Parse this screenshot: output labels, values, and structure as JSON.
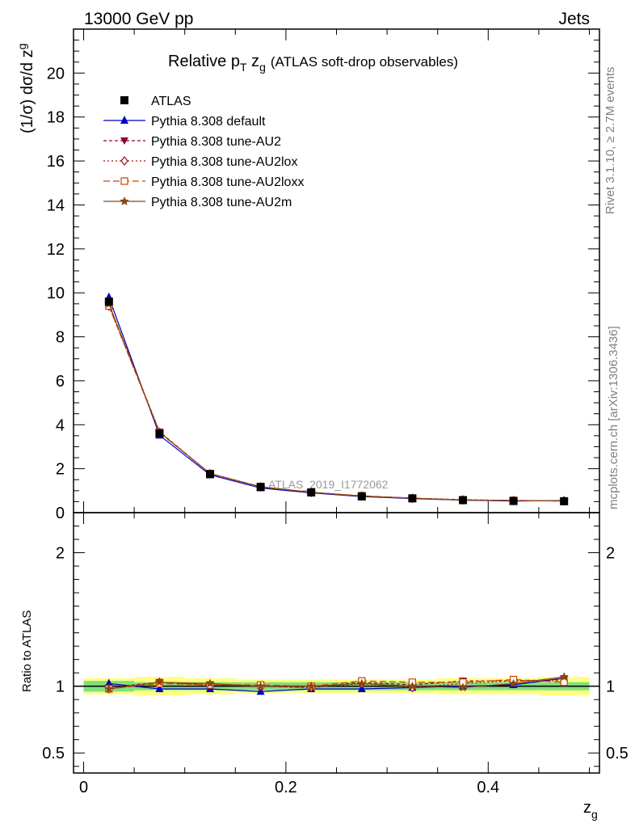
{
  "header": {
    "left_label": "13000 GeV pp",
    "right_label": "Jets"
  },
  "title": {
    "main": "Relative p",
    "main_sub": "T",
    "main_rest": " z",
    "main_rest_sub": "g",
    "paren": "(ATLAS soft-drop observables)"
  },
  "side": {
    "rivet": "Rivet 3.1.10, ≥ 2.7M events",
    "mcplots": "mcplots.cern.ch [arXiv:1306.3436]"
  },
  "watermark": "ATLAS_2019_I1772062",
  "axes": {
    "ylabel_top": "(1/σ) dσ/d z",
    "ylabel_top_sub": "g",
    "ylabel_bottom": "Ratio to ATLAS",
    "xlabel": "z",
    "xlabel_sub": "g"
  },
  "chart_data": {
    "type": "line",
    "x": [
      0.025,
      0.075,
      0.125,
      0.175,
      0.225,
      0.275,
      0.325,
      0.375,
      0.425,
      0.475
    ],
    "xlim": [
      -0.01,
      0.51
    ],
    "ylim_main": [
      0,
      22
    ],
    "ylim_ratio": [
      0.35,
      2.3
    ],
    "xticks": [
      "0",
      "0.2",
      "0.4"
    ],
    "yticks_main": [
      "0",
      "2",
      "4",
      "6",
      "8",
      "10",
      "12",
      "14",
      "16",
      "18",
      "20"
    ],
    "yticks_ratio": [
      "0.5",
      "1",
      "2"
    ],
    "colors": {
      "ATLAS": "#000000",
      "default": "#0000cc",
      "AU2": "#8b0033",
      "AU2lox": "#a01010",
      "AU2loxx": "#cc4400",
      "AU2m": "#8b4513",
      "band_inner": "#7fe07f",
      "band_outer": "#ffff80"
    },
    "series": [
      {
        "name": "ATLAS",
        "marker": "square",
        "values": [
          9.6,
          3.6,
          1.75,
          1.17,
          0.92,
          0.74,
          0.65,
          0.57,
          0.53,
          0.52
        ],
        "ratio": [
          1,
          1,
          1,
          1,
          1,
          1,
          1,
          1,
          1,
          1
        ]
      },
      {
        "name": "Pythia 8.308 default",
        "marker": "triangle-up",
        "values": [
          9.8,
          3.52,
          1.72,
          1.12,
          0.9,
          0.73,
          0.64,
          0.57,
          0.53,
          0.55
        ],
        "ratio": [
          1.02,
          0.98,
          0.98,
          0.96,
          0.98,
          0.98,
          0.99,
          1.0,
          1.01,
          1.06
        ]
      },
      {
        "name": "Pythia 8.308 tune-AU2",
        "marker": "triangle-down",
        "values": [
          9.5,
          3.68,
          1.78,
          1.17,
          0.92,
          0.76,
          0.66,
          0.59,
          0.55,
          0.53
        ],
        "ratio": [
          0.99,
          1.03,
          1.01,
          1.0,
          0.99,
          1.03,
          1.01,
          1.04,
          1.04,
          1.05
        ]
      },
      {
        "name": "Pythia 8.308 tune-AU2lox",
        "marker": "diamond-open",
        "values": [
          9.4,
          3.66,
          1.77,
          1.17,
          0.92,
          0.76,
          0.65,
          0.58,
          0.55,
          0.54
        ],
        "ratio": [
          0.98,
          1.03,
          1.01,
          1.0,
          0.99,
          1.02,
          0.99,
          1.02,
          1.04,
          1.04
        ]
      },
      {
        "name": "Pythia 8.308 tune-AU2loxx",
        "marker": "square-open",
        "values": [
          9.4,
          3.64,
          1.78,
          1.18,
          0.92,
          0.77,
          0.66,
          0.58,
          0.56,
          0.53
        ],
        "ratio": [
          0.98,
          1.02,
          1.01,
          1.01,
          1.0,
          1.04,
          1.03,
          1.03,
          1.05,
          1.03
        ]
      },
      {
        "name": "Pythia 8.308 tune-AU2m",
        "marker": "star",
        "values": [
          9.5,
          3.66,
          1.78,
          1.18,
          0.93,
          0.75,
          0.66,
          0.57,
          0.55,
          0.53
        ],
        "ratio": [
          0.98,
          1.03,
          1.02,
          1.0,
          1.0,
          1.02,
          1.0,
          0.99,
          1.02,
          1.07
        ]
      }
    ],
    "band_inner": [
      0.04,
      0.03,
      0.03,
      0.03,
      0.03,
      0.03,
      0.03,
      0.03,
      0.03,
      0.03
    ],
    "band_outer": [
      0.06,
      0.07,
      0.06,
      0.05,
      0.05,
      0.05,
      0.05,
      0.06,
      0.06,
      0.07
    ]
  }
}
